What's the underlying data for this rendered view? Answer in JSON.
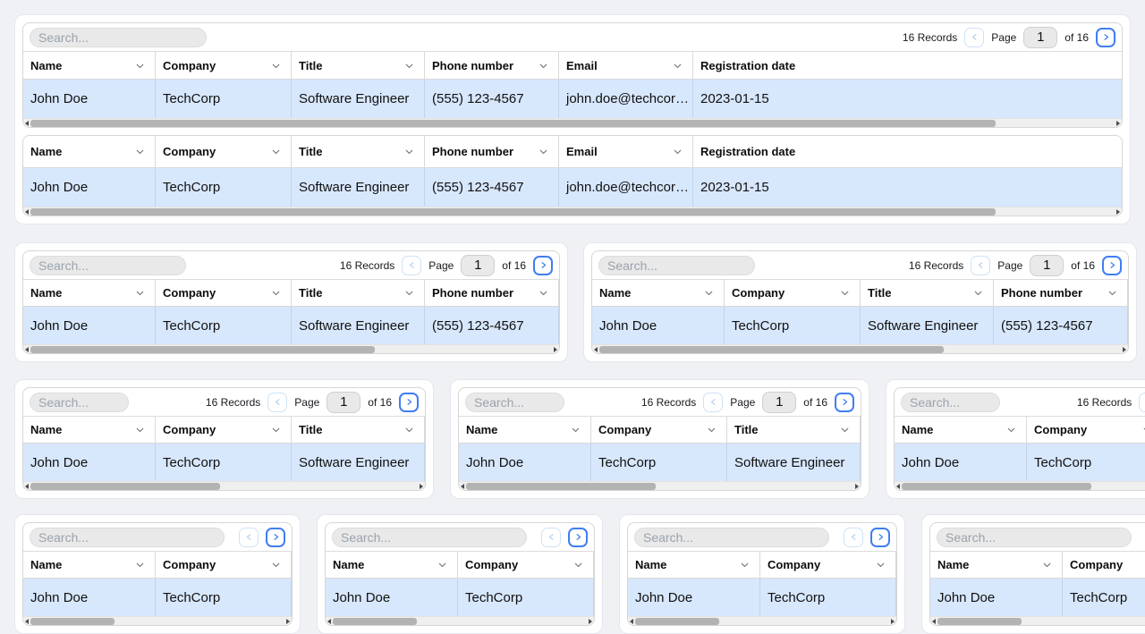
{
  "colors": {
    "page_background": "#eff1f4",
    "row_highlight": "#d7e7fc",
    "accent_blue": "#3f7ef2",
    "prev_disabled_border": "#cfe1f6",
    "prev_disabled_icon": "#b9d2ee",
    "search_background": "#e9e9e9",
    "scrollbar_thumb": "#b3b3b3"
  },
  "shared": {
    "search_placeholder": "Search...",
    "records": "16 Records",
    "page_label": "Page",
    "page_value": "1",
    "of_label": "of 16"
  },
  "columns": [
    {
      "key": "name",
      "label": "Name",
      "sortable": true
    },
    {
      "key": "company",
      "label": "Company",
      "sortable": true
    },
    {
      "key": "title",
      "label": "Title",
      "sortable": true
    },
    {
      "key": "phone",
      "label": "Phone number",
      "sortable": true
    },
    {
      "key": "email",
      "label": "Email",
      "sortable": true
    },
    {
      "key": "registration_date",
      "label": "Registration date",
      "sortable": false
    }
  ],
  "row_values": [
    "John Doe",
    "TechCorp",
    "Software Engineer",
    "(555) 123-4567",
    "john.doe@techcor…",
    "2023-01-15"
  ],
  "tables": [
    {
      "id": "table-full-top",
      "section": 1,
      "toolbar": "full",
      "visible_columns": 6,
      "scroll_thumb_pct": 89
    },
    {
      "id": "table-full-plain",
      "section": 1,
      "toolbar": "none",
      "visible_columns": 6,
      "scroll_thumb_pct": 89
    },
    {
      "id": "table-half-left",
      "section": 2,
      "toolbar": "full",
      "visible_columns": 4,
      "scroll_thumb_pct": 66
    },
    {
      "id": "table-half-right",
      "section": 2,
      "toolbar": "full",
      "visible_columns": 4,
      "scroll_thumb_pct": 66
    },
    {
      "id": "table-third-1",
      "section": 3,
      "toolbar": "full",
      "visible_columns": 3,
      "scroll_thumb_pct": 49
    },
    {
      "id": "table-third-2",
      "section": 3,
      "toolbar": "full",
      "visible_columns": 3,
      "scroll_thumb_pct": 49
    },
    {
      "id": "table-third-3",
      "section": 3,
      "toolbar": "full",
      "visible_columns": 3,
      "scroll_thumb_pct": 49
    },
    {
      "id": "table-quarter-1",
      "section": 4,
      "toolbar": "compact",
      "visible_columns": 2,
      "scroll_thumb_pct": 33
    },
    {
      "id": "table-quarter-2",
      "section": 4,
      "toolbar": "compact",
      "visible_columns": 2,
      "scroll_thumb_pct": 33
    },
    {
      "id": "table-quarter-3",
      "section": 4,
      "toolbar": "compact",
      "visible_columns": 2,
      "scroll_thumb_pct": 33
    },
    {
      "id": "table-quarter-4",
      "section": 4,
      "toolbar": "compact",
      "visible_columns": 2,
      "scroll_thumb_pct": 33
    }
  ]
}
